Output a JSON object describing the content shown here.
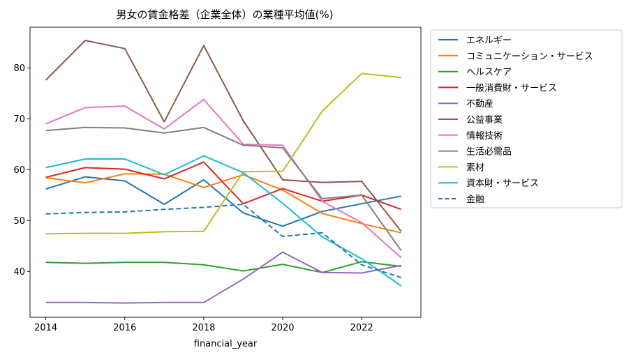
{
  "chart_data": {
    "type": "line",
    "title": "男女の賃金格差（企業全体）の業種平均値(%)",
    "xlabel": "financial_year",
    "ylabel": "",
    "x": [
      2014,
      2015,
      2016,
      2017,
      2018,
      2019,
      2020,
      2021,
      2022,
      2023
    ],
    "xlim": [
      2013.6,
      2023.5
    ],
    "ylim": [
      31,
      88
    ],
    "xticks": [
      2014,
      2016,
      2018,
      2020,
      2022
    ],
    "yticks": [
      40,
      50,
      60,
      70,
      80
    ],
    "legend_position": "outside-right",
    "series": [
      {
        "name": "エネルギー",
        "color": "#1f77b4",
        "dashed": false,
        "values": [
          56.2,
          58.6,
          57.8,
          53.2,
          58.0,
          51.5,
          48.9,
          51.8,
          53.3,
          54.8
        ]
      },
      {
        "name": "コミュニケーション・サービス",
        "color": "#ff7f0e",
        "dashed": false,
        "values": [
          58.4,
          57.4,
          59.2,
          59.1,
          56.5,
          59.0,
          56.0,
          51.4,
          49.4,
          47.6
        ]
      },
      {
        "name": "ヘルスケア",
        "color": "#2ca02c",
        "dashed": false,
        "values": [
          41.8,
          41.6,
          41.8,
          41.8,
          41.3,
          40.1,
          41.4,
          39.8,
          41.9,
          41.0
        ]
      },
      {
        "name": "一般消費財・サービス",
        "color": "#d62728",
        "dashed": false,
        "values": [
          58.5,
          60.4,
          60.1,
          58.2,
          61.5,
          53.3,
          56.3,
          53.8,
          55.0,
          52.2
        ]
      },
      {
        "name": "不動産",
        "color": "#9467bd",
        "dashed": false,
        "values": [
          33.9,
          33.9,
          33.8,
          33.9,
          33.9,
          38.5,
          43.8,
          39.8,
          39.7,
          41.2
        ]
      },
      {
        "name": "公益事業",
        "color": "#8c564b",
        "dashed": false,
        "values": [
          77.6,
          85.4,
          83.8,
          69.4,
          84.4,
          69.6,
          58.0,
          57.5,
          57.7,
          47.9
        ]
      },
      {
        "name": "情報技術",
        "color": "#e377c2",
        "dashed": false,
        "values": [
          69.0,
          72.2,
          72.5,
          68.0,
          73.8,
          65.0,
          64.8,
          53.8,
          49.6,
          42.7
        ]
      },
      {
        "name": "生活必需品",
        "color": "#7f7f7f",
        "dashed": false,
        "values": [
          67.7,
          68.3,
          68.2,
          67.2,
          68.3,
          64.8,
          64.3,
          54.3,
          55.0,
          44.1
        ]
      },
      {
        "name": "素材",
        "color": "#bcbd22",
        "dashed": false,
        "values": [
          47.4,
          47.5,
          47.5,
          47.8,
          47.9,
          59.6,
          59.7,
          71.5,
          78.9,
          78.1
        ]
      },
      {
        "name": "資本財・サービス",
        "color": "#17becf",
        "dashed": false,
        "values": [
          60.4,
          62.1,
          62.1,
          59.0,
          62.7,
          59.4,
          53.4,
          46.8,
          42.5,
          37.2
        ]
      },
      {
        "name": "金融",
        "color": "#1f77b4",
        "dashed": true,
        "values": [
          51.3,
          51.6,
          51.7,
          52.2,
          52.6,
          53.2,
          46.9,
          47.6,
          41.3,
          38.8
        ]
      }
    ]
  }
}
